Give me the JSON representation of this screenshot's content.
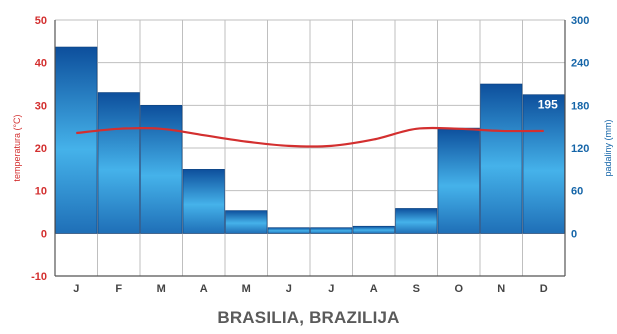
{
  "chart_data": {
    "type": "bar+line",
    "title": "BRASILIA, BRAZILIJA",
    "categories": [
      "J",
      "F",
      "M",
      "A",
      "M",
      "J",
      "J",
      "A",
      "S",
      "O",
      "N",
      "D"
    ],
    "precipitation": {
      "axis": "right",
      "label": "padaliny (mm)",
      "values": [
        262,
        198,
        180,
        90,
        32,
        8,
        8,
        10,
        35,
        148,
        210,
        195
      ],
      "ticks": [
        "300",
        "240",
        "180",
        "120",
        "60",
        "0"
      ],
      "ylim": [
        -60,
        300
      ],
      "color_top": "#0d4f9c",
      "color_mid": "#45b2ea",
      "color_bottom": "#1f6fb7"
    },
    "temperature": {
      "axis": "left",
      "label": "temperatura (°C)",
      "values": [
        23.5,
        24.5,
        24.5,
        23,
        21.5,
        20.5,
        20.5,
        22,
        24.5,
        24.5,
        24,
        24
      ],
      "ticks": [
        "50",
        "40",
        "30",
        "20",
        "10",
        "0",
        "-10"
      ],
      "ylim": [
        -10,
        50
      ],
      "color": "#d32f2f"
    },
    "annotations": [
      {
        "category_index": 11,
        "text": "195"
      }
    ],
    "grid": true
  }
}
